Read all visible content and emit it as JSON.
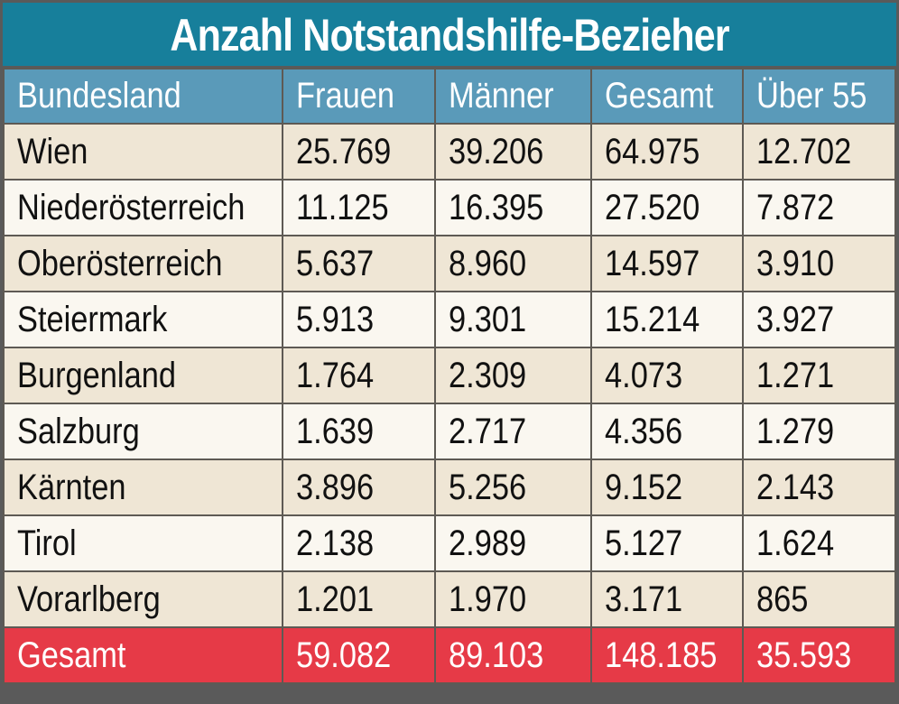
{
  "chart_data": {
    "type": "table",
    "title": "Anzahl Notstandshilfe-Bezieher",
    "columns": [
      "Bundesland",
      "Frauen",
      "Männer",
      "Gesamt",
      "Über 55"
    ],
    "rows": [
      [
        "Wien",
        "25.769",
        "39.206",
        "64.975",
        "12.702"
      ],
      [
        "Niederösterreich",
        "11.125",
        "16.395",
        "27.520",
        "7.872"
      ],
      [
        "Oberösterreich",
        "5.637",
        "8.960",
        "14.597",
        "3.910"
      ],
      [
        "Steiermark",
        "5.913",
        "9.301",
        "15.214",
        "3.927"
      ],
      [
        "Burgenland",
        "1.764",
        "2.309",
        "4.073",
        "1.271"
      ],
      [
        "Salzburg",
        "1.639",
        "2.717",
        "4.356",
        "1.279"
      ],
      [
        "Kärnten",
        "3.896",
        "5.256",
        "9.152",
        "2.143"
      ],
      [
        "Tirol",
        "2.138",
        "2.989",
        "5.127",
        "1.624"
      ],
      [
        "Vorarlberg",
        "1.201",
        "1.970",
        "3.171",
        "865"
      ]
    ],
    "total": [
      "Gesamt",
      "59.082",
      "89.103",
      "148.185",
      "35.593"
    ]
  },
  "colors": {
    "title_bg": "#177f9b",
    "header_bg": "#5a9ab9",
    "row_odd": "#efe6d5",
    "row_even": "#faf7f0",
    "total_bg": "#e63a47"
  }
}
